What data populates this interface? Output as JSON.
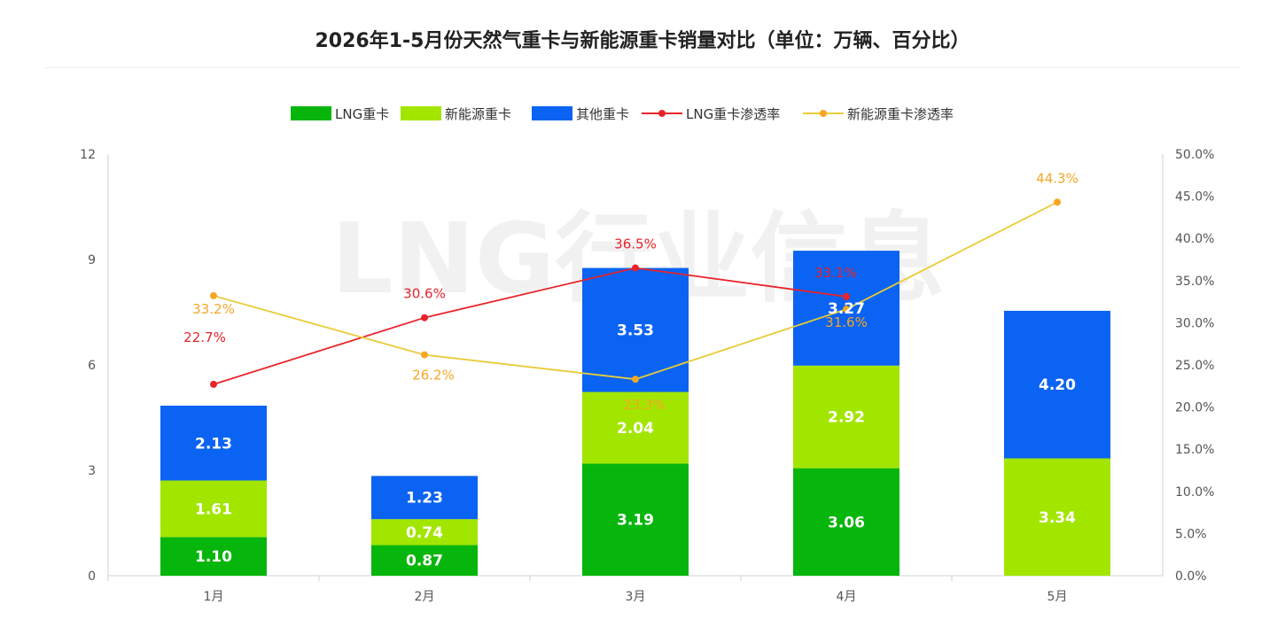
{
  "title": "2026年1-5月份天然气重卡与新能源重卡销量对比（单位：万辆、百分比）",
  "watermark": "LNG行业信息",
  "colors": {
    "lng": "#07b60c",
    "nev": "#a2e600",
    "other": "#0a63f2",
    "lng_rate": "#e8242a",
    "nev_rate": "#f5a623",
    "nev_rate_line": "#e8cc3a",
    "axis": "#d0d0d0",
    "text": "#555555"
  },
  "chart_data": {
    "type": "bar",
    "stacked": true,
    "title": "2026年1-5月份天然气重卡与新能源重卡销量对比（单位：万辆、百分比）",
    "categories": [
      "1月",
      "2月",
      "3月",
      "4月",
      "5月"
    ],
    "series": [
      {
        "name": "LNG重卡",
        "type": "bar",
        "axis": "left",
        "values": [
          1.1,
          0.87,
          3.19,
          3.06,
          null
        ],
        "labels": [
          "1.10",
          "0.87",
          "3.19",
          "3.06",
          ""
        ]
      },
      {
        "name": "新能源重卡",
        "type": "bar",
        "axis": "left",
        "values": [
          1.61,
          0.74,
          2.04,
          2.92,
          3.34
        ],
        "labels": [
          "1.61",
          "0.74",
          "2.04",
          "2.92",
          "3.34"
        ]
      },
      {
        "name": "其他重卡",
        "type": "bar",
        "axis": "left",
        "values": [
          2.13,
          1.23,
          3.53,
          3.27,
          4.2
        ],
        "labels": [
          "2.13",
          "1.23",
          "3.53",
          "3.27",
          "4.20"
        ]
      },
      {
        "name": "LNG重卡渗透率",
        "type": "line",
        "axis": "right",
        "values": [
          22.7,
          30.6,
          36.5,
          33.1,
          null
        ],
        "labels": [
          "22.7%",
          "30.6%",
          "36.5%",
          "33.1%",
          ""
        ]
      },
      {
        "name": "新能源重卡渗透率",
        "type": "line",
        "axis": "right",
        "values": [
          33.2,
          26.2,
          23.3,
          31.6,
          44.3
        ],
        "labels": [
          "33.2%",
          "26.2%",
          "23.3%",
          "31.6%",
          "44.3%"
        ]
      }
    ],
    "y_left": {
      "min": 0,
      "max": 12,
      "ticks": [
        "0",
        "3",
        "6",
        "9",
        "12"
      ]
    },
    "y_right": {
      "min": 0,
      "max": 50,
      "ticks": [
        "0.0%",
        "5.0%",
        "10.0%",
        "15.0%",
        "20.0%",
        "25.0%",
        "30.0%",
        "35.0%",
        "40.0%",
        "45.0%",
        "50.0%"
      ]
    },
    "legend": "top-center",
    "grid": false
  }
}
